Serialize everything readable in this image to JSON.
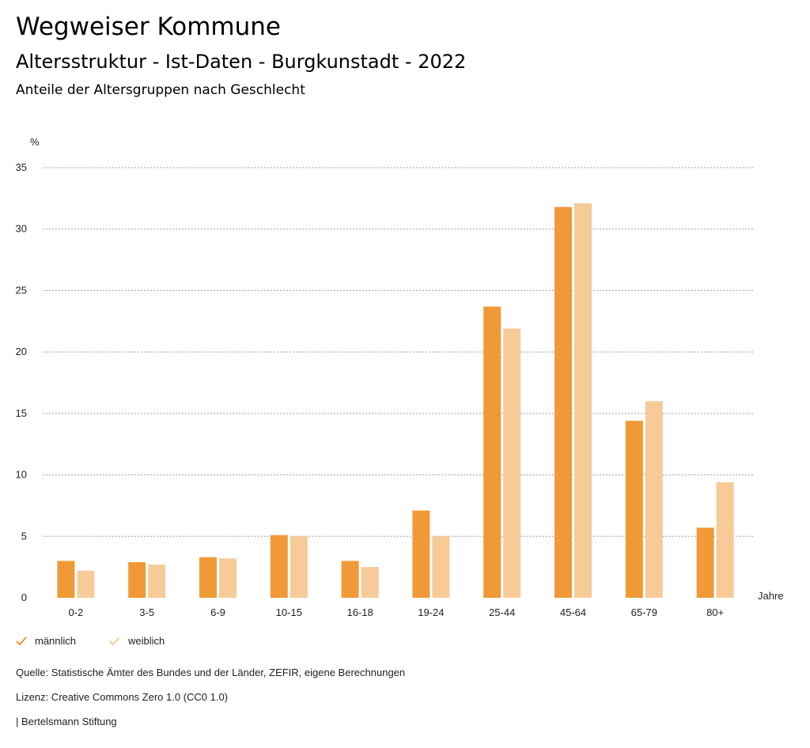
{
  "header": {
    "title": "Wegweiser Kommune",
    "subtitle": "Altersstruktur - Ist-Daten - Burgkunstadt - 2022",
    "chart_title": "Anteile der Altersgruppen nach Geschlecht"
  },
  "legend": {
    "male_label": "männlich",
    "female_label": "weiblich"
  },
  "footer": {
    "source": "Quelle: Statistische Ämter des Bundes und der Länder, ZEFIR, eigene Berechnungen",
    "license": "Lizenz: Creative Commons Zero 1.0 (CC0 1.0)",
    "publisher": "| Bertelsmann Stiftung"
  },
  "colors": {
    "male": "#f09a37",
    "female": "#f6cb98",
    "grid": "#a0a0a0"
  },
  "chart_data": {
    "type": "bar",
    "title": "Anteile der Altersgruppen nach Geschlecht",
    "ylabel": "%",
    "xlabel": "Jahre",
    "ylim": [
      0,
      35
    ],
    "yticks": [
      0,
      5,
      10,
      15,
      20,
      25,
      30,
      35
    ],
    "grid": true,
    "legend_position": "bottom-left",
    "categories": [
      "0-2",
      "3-5",
      "6-9",
      "10-15",
      "16-18",
      "19-24",
      "25-44",
      "45-64",
      "65-79",
      "80+"
    ],
    "series": [
      {
        "name": "männlich",
        "values": [
          3.0,
          2.9,
          3.3,
          5.1,
          3.0,
          7.1,
          23.7,
          31.8,
          14.4,
          5.7
        ]
      },
      {
        "name": "weiblich",
        "values": [
          2.2,
          2.7,
          3.2,
          5.0,
          2.5,
          5.0,
          21.9,
          32.1,
          16.0,
          9.4
        ]
      }
    ]
  }
}
